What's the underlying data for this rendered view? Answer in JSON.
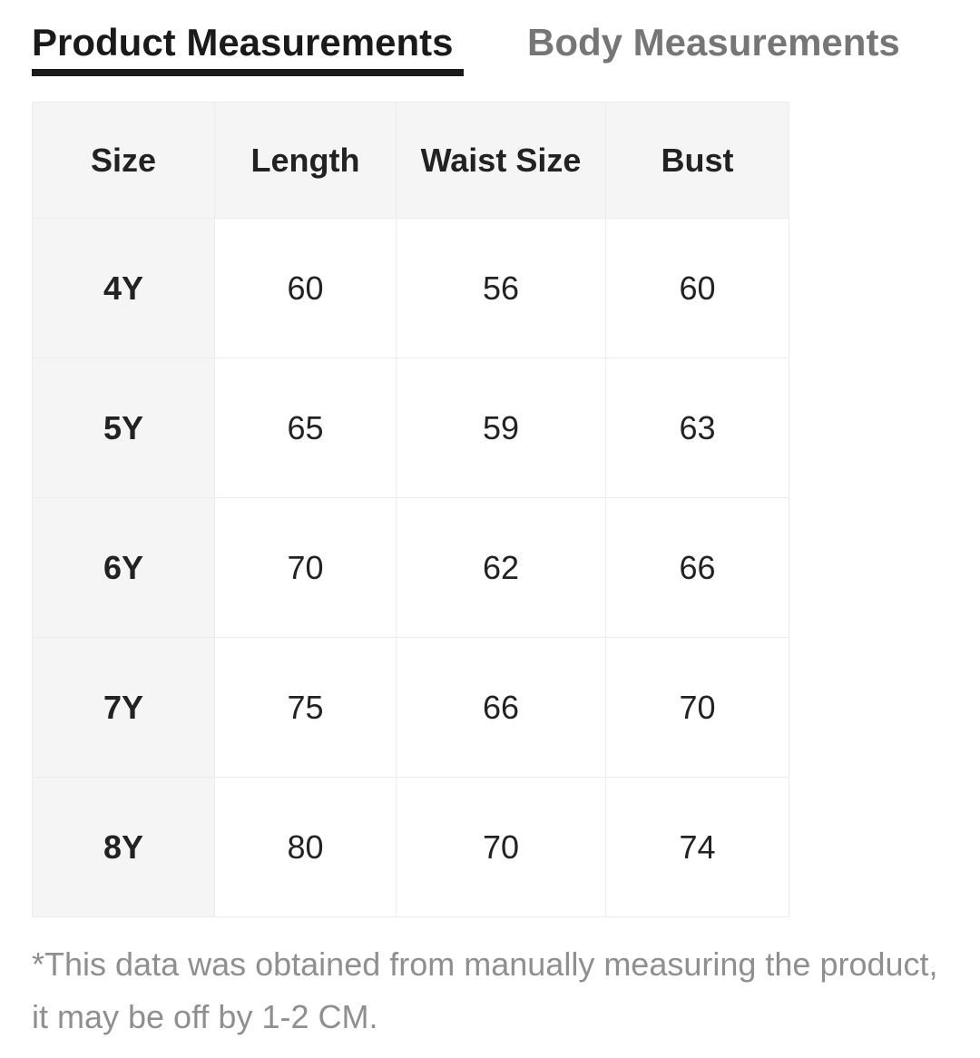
{
  "tabs": {
    "product_label": "Product Measurements",
    "body_label": "Body Measurements",
    "active": "product"
  },
  "table": {
    "headers": [
      "Size",
      "Length",
      "Waist Size",
      "Bust"
    ],
    "rows": [
      {
        "size": "4Y",
        "length": "60",
        "waist": "56",
        "bust": "60"
      },
      {
        "size": "5Y",
        "length": "65",
        "waist": "59",
        "bust": "63"
      },
      {
        "size": "6Y",
        "length": "70",
        "waist": "62",
        "bust": "66"
      },
      {
        "size": "7Y",
        "length": "75",
        "waist": "66",
        "bust": "70"
      },
      {
        "size": "8Y",
        "length": "80",
        "waist": "70",
        "bust": "74"
      }
    ]
  },
  "disclaimer": "*This data was obtained from manually measuring the product, it may be off by 1-2 CM.",
  "colors": {
    "active_tab": "#1a1a1a",
    "inactive_tab": "#767676",
    "header_bg": "#f5f5f5",
    "border": "#ececec",
    "disclaimer_text": "#8f8f8f"
  }
}
